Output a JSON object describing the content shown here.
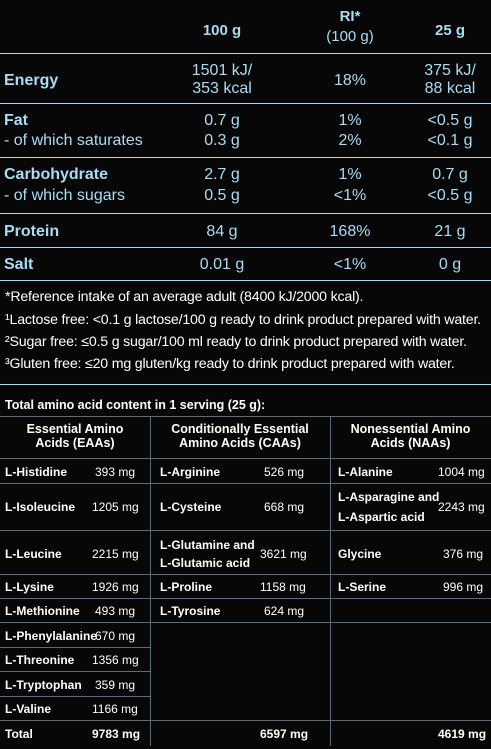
{
  "nutrition": {
    "headers": {
      "per100": "100 g",
      "ri_line1": "RI*",
      "ri_line2": "(100 g)",
      "per25": "25 g"
    },
    "energy": {
      "label": "Energy",
      "v100_a": "1501 kJ/",
      "v100_b": "353 kcal",
      "ri": "18%",
      "v25_a": "375 kJ/",
      "v25_b": "88 kcal"
    },
    "fat": {
      "label": "Fat",
      "v100": "0.7 g",
      "ri": "1%",
      "v25": "<0.5 g"
    },
    "saturates": {
      "label": "- of which saturates",
      "v100": "0.3 g",
      "ri": "2%",
      "v25": "<0.1 g"
    },
    "carbohydrate": {
      "label": "Carbohydrate",
      "v100": "2.7 g",
      "ri": "1%",
      "v25": "0.7 g"
    },
    "sugars": {
      "label": "- of which sugars",
      "v100": "0.5 g",
      "ri": "<1%",
      "v25": "<0.5 g"
    },
    "protein": {
      "label": "Protein",
      "v100": "84 g",
      "ri": "168%",
      "v25": "21 g"
    },
    "salt": {
      "label": "Salt",
      "v100": "0.01 g",
      "ri": "<1%",
      "v25": "0 g"
    }
  },
  "notes": [
    "*Reference intake of an average adult (8400 kJ/2000 kcal).",
    "¹Lactose free: <0.1 g lactose/100 g ready to drink product prepared with water.",
    "²Sugar free: ≤0.5 g sugar/100 ml ready to drink product prepared with water.",
    "³Gluten free: ≤20 mg gluten/kg ready to drink product prepared with water."
  ],
  "amino": {
    "title": "Total amino acid content in 1 serving (25 g):",
    "col1_head_a": "Essential Amino",
    "col1_head_b": "Acids (EAAs)",
    "col2_head_a": "Conditionally Essential",
    "col2_head_b": "Amino Acids (CAAs)",
    "col3_head_a": "Nonessential Amino",
    "col3_head_b": "Acids (NAAs)",
    "eaa": [
      {
        "name": "L-Histidine",
        "value": "393 mg"
      },
      {
        "name": "L-Isoleucine",
        "value": "1205 mg"
      },
      {
        "name": "L-Leucine",
        "value": "2215 mg"
      },
      {
        "name": "L-Lysine",
        "value": "1926 mg"
      },
      {
        "name": "L-Methionine",
        "value": "493 mg"
      },
      {
        "name": "L-Phenylalanine",
        "value": "670 mg"
      },
      {
        "name": "L-Threonine",
        "value": "1356 mg"
      },
      {
        "name": "L-Tryptophan",
        "value": "359 mg"
      },
      {
        "name": "L-Valine",
        "value": "1166 mg"
      }
    ],
    "caa": [
      {
        "name": "L-Arginine",
        "value": "526 mg"
      },
      {
        "name": "L-Cysteine",
        "value": "668 mg"
      },
      {
        "name_a": "L-Glutamine and",
        "name_b": "L-Glutamic acid",
        "value": "3621 mg"
      },
      {
        "name": "L-Proline",
        "value": "1158 mg"
      },
      {
        "name": "L-Tyrosine",
        "value": "624 mg"
      }
    ],
    "naa": [
      {
        "name": "L-Alanine",
        "value": "1004 mg"
      },
      {
        "name_a": "L-Asparagine and",
        "name_b": "L-Aspartic acid",
        "value": "2243 mg"
      },
      {
        "name": "Glycine",
        "value": "376 mg"
      },
      {
        "name": "L-Serine",
        "value": "996 mg"
      }
    ],
    "total_label": "Total",
    "total_eaa": "9783 mg",
    "total_caa": "6597 mg",
    "total_naa": "4619 mg"
  }
}
